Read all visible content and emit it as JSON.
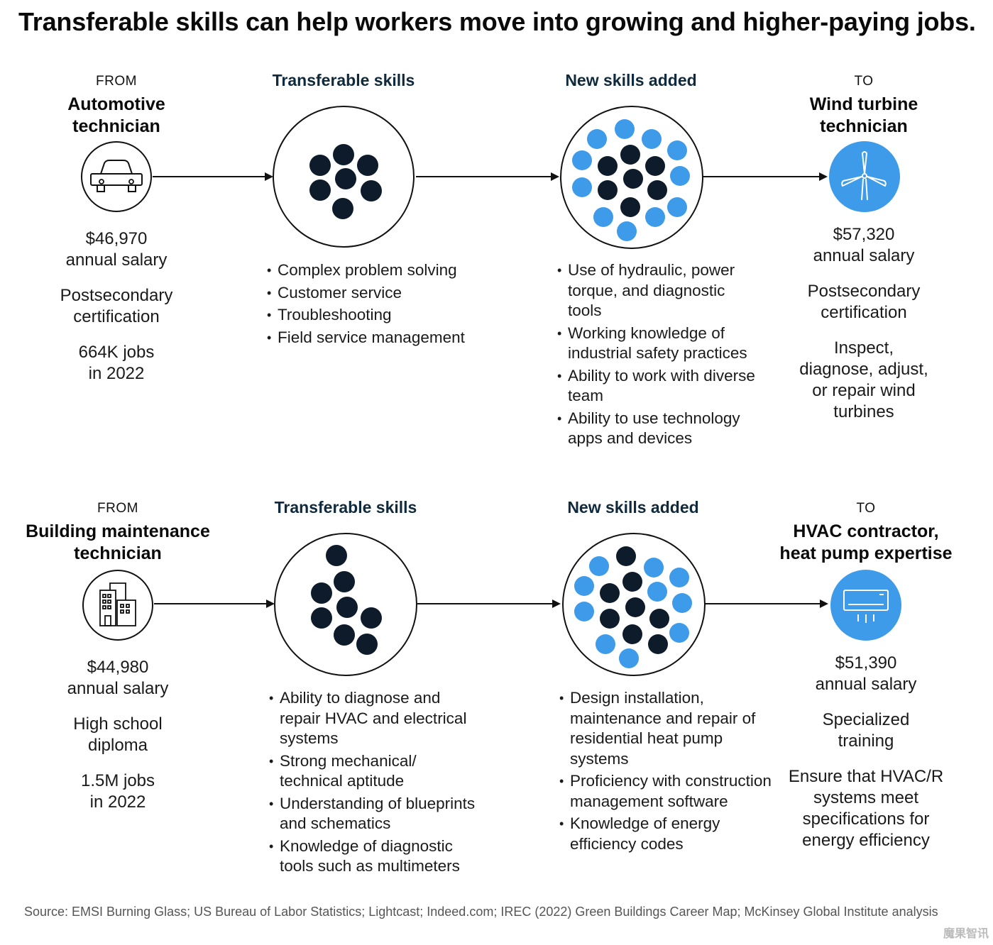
{
  "title": "Transferable skills can help workers move into growing and higher-paying jobs.",
  "column_headers": {
    "transferable": "Transferable skills",
    "new_skills": "New skills added"
  },
  "colors": {
    "dark_dot": "#0d1b2a",
    "light_dot": "#3d9be9",
    "target_circle": "#3d9be9",
    "text_heading": "#0f2a3c"
  },
  "rows": [
    {
      "from": {
        "label": "FROM",
        "title_line1": "Automotive",
        "title_line2": "technician",
        "icon": "car-icon",
        "salary": "$46,970",
        "salary_label": "annual salary",
        "education_line1": "Postsecondary",
        "education_line2": "certification",
        "jobs_line1": "664K jobs",
        "jobs_line2": "in 2022"
      },
      "transferable_skills": [
        "Complex problem solving",
        "Customer service",
        "Troubleshooting",
        "Field service management"
      ],
      "new_skills": [
        "Use of hydraulic, power torque, and diagnostic tools",
        "Working knowledge of industrial safety practices",
        "Ability to work with diverse team",
        "Ability to use technology apps and devices"
      ],
      "to": {
        "label": "TO",
        "title_line1": "Wind turbine",
        "title_line2": "technician",
        "icon": "wind-turbine-icon",
        "salary": "$57,320",
        "salary_label": "annual salary",
        "education_line1": "Postsecondary",
        "education_line2": "certification",
        "duty": "Inspect, diagnose, adjust, or repair wind turbines"
      }
    },
    {
      "from": {
        "label": "FROM",
        "title_line1": "Building maintenance",
        "title_line2": "technician",
        "icon": "building-icon",
        "salary": "$44,980",
        "salary_label": "annual salary",
        "education_line1": "High school",
        "education_line2": "diploma",
        "jobs_line1": "1.5M jobs",
        "jobs_line2": "in 2022"
      },
      "transferable_skills": [
        "Ability to diagnose and repair HVAC and electrical systems",
        "Strong mechanical/ technical aptitude",
        "Understanding of blueprints and schematics",
        "Knowledge of diagnostic tools such as multimeters"
      ],
      "new_skills": [
        "Design installation, maintenance and repair of residential heat pump systems",
        "Proficiency with construction management software",
        "Knowledge of energy efficiency codes"
      ],
      "to": {
        "label": "TO",
        "title_line1": "HVAC contractor,",
        "title_line2": "heat pump expertise",
        "icon": "air-conditioner-icon",
        "salary": "$51,390",
        "salary_label": "annual salary",
        "education_line1": "Specialized",
        "education_line2": "training",
        "duty": "Ensure that HVAC/R systems meet specifications for energy efficiency"
      }
    }
  ],
  "source": "Source: EMSI Burning Glass; US Bureau of Labor Statistics; Lightcast; Indeed.com; IREC (2022) Green Buildings Career Map; McKinsey Global Institute analysis",
  "watermark": "魔果智讯"
}
